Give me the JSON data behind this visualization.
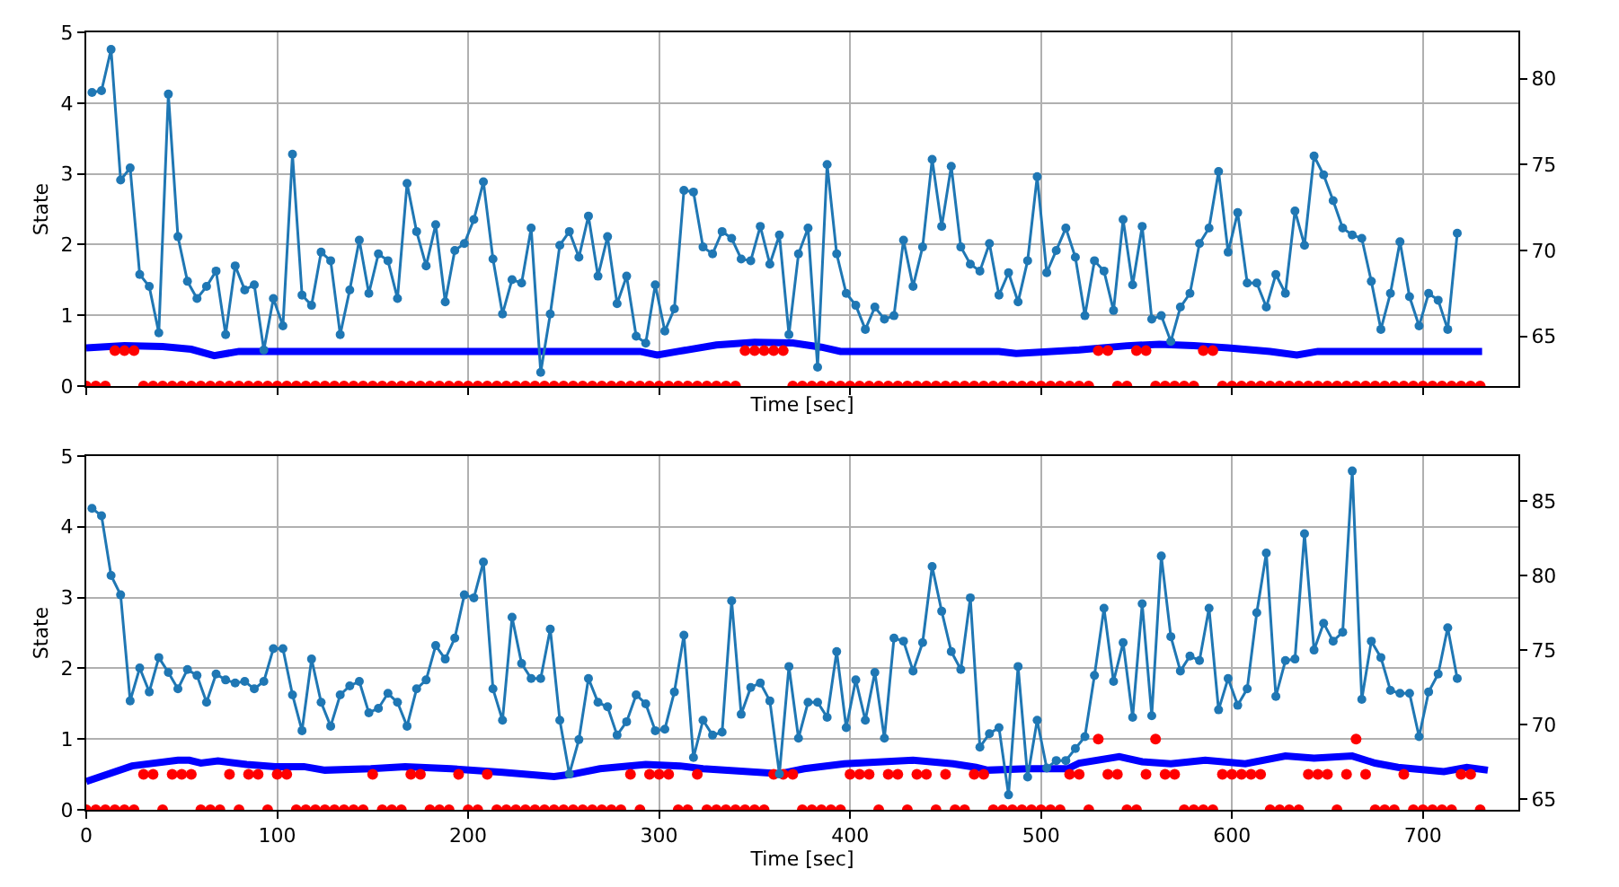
{
  "chart_data": [
    {
      "type": "line",
      "xlabel": "Time [sec]",
      "ylabel": "State",
      "xlim": [
        0,
        750
      ],
      "xticks": [
        0,
        100,
        200,
        300,
        400,
        500,
        600,
        700
      ],
      "ylim": [
        0,
        5
      ],
      "yticks": [
        0,
        1,
        2,
        3,
        4,
        5
      ],
      "y2lim": [
        62.1,
        82.7
      ],
      "y2ticks": [
        65,
        70,
        75,
        80
      ],
      "grid": true,
      "tick_labels": "y",
      "x": [
        3,
        8,
        13,
        18,
        23,
        28,
        33,
        38,
        43,
        48,
        53,
        58,
        63,
        68,
        73,
        78,
        83,
        88,
        93,
        98,
        103,
        108,
        113,
        118,
        123,
        128,
        133,
        138,
        143,
        148,
        153,
        158,
        163,
        168,
        173,
        178,
        183,
        188,
        193,
        198,
        203,
        208,
        213,
        218,
        223,
        228,
        233,
        238,
        243,
        248,
        253,
        258,
        263,
        268,
        273,
        278,
        283,
        288,
        293,
        298,
        303,
        308,
        313,
        318,
        323,
        328,
        333,
        338,
        343,
        348,
        353,
        358,
        363,
        368,
        373,
        378,
        383,
        388,
        393,
        398,
        403,
        408,
        413,
        418,
        423,
        428,
        433,
        438,
        443,
        448,
        453,
        458,
        463,
        468,
        473,
        478,
        483,
        488,
        493,
        498,
        503,
        508,
        513,
        518,
        523,
        528,
        533,
        538,
        543,
        548,
        553,
        558,
        563,
        568,
        573,
        578,
        583,
        588,
        593,
        598,
        603,
        608,
        613,
        618,
        623,
        628,
        633,
        638,
        643,
        648,
        653,
        658,
        663,
        668,
        673,
        678,
        683,
        688,
        693,
        698,
        703,
        708,
        713,
        718
      ],
      "series": [
        {
          "axis": "y2",
          "color": "#1f77b4",
          "marker": "circle",
          "values": [
            79.2,
            79.3,
            81.7,
            74.1,
            74.8,
            68.6,
            67.9,
            65.2,
            79.1,
            70.8,
            68.2,
            67.2,
            67.9,
            68.8,
            65.1,
            69.1,
            67.7,
            68.0,
            64.2,
            67.2,
            65.6,
            75.6,
            67.4,
            66.8,
            69.9,
            69.4,
            65.1,
            67.7,
            70.6,
            67.5,
            69.8,
            69.4,
            67.2,
            73.9,
            71.1,
            69.1,
            71.5,
            67.0,
            70.0,
            70.4,
            71.8,
            74.0,
            69.5,
            66.3,
            68.3,
            68.1,
            71.3,
            62.9,
            66.3,
            70.3,
            71.1,
            69.6,
            72.0,
            68.5,
            70.8,
            66.9,
            68.5,
            65.0,
            64.6,
            68.0,
            65.3,
            66.6,
            73.5,
            73.4,
            70.2,
            69.8,
            71.1,
            70.7,
            69.5,
            69.4,
            71.4,
            69.2,
            70.9,
            65.1,
            69.8,
            71.3,
            63.2,
            75.0,
            69.8,
            67.5,
            66.8,
            65.4,
            66.7,
            66.0,
            66.2,
            70.6,
            67.9,
            70.2,
            75.3,
            71.4,
            74.9,
            70.2,
            69.2,
            68.8,
            70.4,
            67.4,
            68.7,
            67.0,
            69.4,
            74.3,
            68.7,
            70.0,
            71.3,
            69.6,
            66.2,
            69.4,
            68.8,
            66.5,
            71.8,
            68.0,
            71.4,
            66.0,
            66.2,
            64.7,
            66.7,
            67.5,
            70.4,
            71.3,
            74.6,
            69.9,
            72.2,
            68.1,
            68.1,
            66.7,
            68.6,
            67.5,
            72.3,
            70.3,
            75.5,
            74.4,
            72.9,
            71.3,
            70.9,
            70.7,
            68.2,
            65.4,
            67.5,
            70.5,
            67.3,
            65.6,
            67.5,
            67.1,
            65.4,
            71.0
          ]
        },
        {
          "color": "#0000ff",
          "marker": "none",
          "x": [
            0,
            20,
            40,
            55,
            67,
            80,
            290,
            299,
            310,
            330,
            350,
            370,
            385,
            395,
            478,
            487,
            520,
            545,
            562,
            580,
            598,
            620,
            634,
            645,
            731
          ],
          "values": [
            0.54,
            0.57,
            0.56,
            0.52,
            0.43,
            0.49,
            0.49,
            0.44,
            0.49,
            0.58,
            0.62,
            0.61,
            0.55,
            0.49,
            0.49,
            0.46,
            0.51,
            0.57,
            0.59,
            0.57,
            0.54,
            0.49,
            0.44,
            0.49,
            0.49
          ]
        },
        {
          "type": "scatter",
          "color": "#ff0000",
          "marker": "circle",
          "x": [
            0,
            5,
            10,
            15,
            20,
            25,
            30,
            35,
            40,
            45,
            50,
            55,
            60,
            65,
            70,
            75,
            80,
            85,
            90,
            95,
            100,
            105,
            110,
            115,
            120,
            125,
            130,
            135,
            140,
            145,
            150,
            155,
            160,
            165,
            170,
            175,
            180,
            185,
            190,
            195,
            200,
            205,
            210,
            215,
            220,
            225,
            230,
            235,
            240,
            245,
            250,
            255,
            260,
            265,
            270,
            275,
            280,
            285,
            290,
            295,
            300,
            305,
            310,
            315,
            320,
            325,
            330,
            335,
            340,
            345,
            350,
            355,
            360,
            365,
            370,
            375,
            380,
            385,
            390,
            395,
            400,
            405,
            410,
            415,
            420,
            425,
            430,
            435,
            440,
            445,
            450,
            455,
            460,
            465,
            470,
            475,
            480,
            485,
            490,
            495,
            500,
            505,
            510,
            515,
            520,
            525,
            530,
            535,
            540,
            545,
            550,
            555,
            560,
            565,
            570,
            575,
            580,
            585,
            590,
            595,
            600,
            605,
            610,
            615,
            620,
            625,
            630,
            635,
            640,
            645,
            650,
            655,
            660,
            665,
            670,
            675,
            680,
            685,
            690,
            695,
            700,
            705,
            710,
            715,
            720,
            725,
            730
          ],
          "values": [
            0,
            0,
            0,
            0.5,
            0.5,
            0.5,
            0,
            0,
            0,
            0,
            0,
            0,
            0,
            0,
            0,
            0,
            0,
            0,
            0,
            0,
            0,
            0,
            0,
            0,
            0,
            0,
            0,
            0,
            0,
            0,
            0,
            0,
            0,
            0,
            0,
            0,
            0,
            0,
            0,
            0,
            0,
            0,
            0,
            0,
            0,
            0,
            0,
            0,
            0,
            0,
            0,
            0,
            0,
            0,
            0,
            0,
            0,
            0,
            0,
            0,
            0,
            0,
            0,
            0,
            0,
            0,
            0,
            0,
            0,
            0.5,
            0.5,
            0.5,
            0.5,
            0.5,
            0,
            0,
            0,
            0,
            0,
            0,
            0,
            0,
            0,
            0,
            0,
            0,
            0,
            0,
            0,
            0,
            0,
            0,
            0,
            0,
            0,
            0,
            0,
            0,
            0,
            0,
            0,
            0,
            0,
            0,
            0,
            0,
            0.5,
            0.5,
            0,
            0,
            0.5,
            0.5,
            0,
            0,
            0,
            0,
            0,
            0.5,
            0.5,
            0,
            0,
            0,
            0,
            0,
            0,
            0,
            0,
            0,
            0,
            0,
            0,
            0,
            0,
            0,
            0,
            0,
            0,
            0,
            0,
            0,
            0,
            0,
            0,
            0,
            0,
            0,
            0
          ]
        }
      ]
    },
    {
      "type": "line",
      "xlabel": "Time [sec]",
      "ylabel": "State",
      "xlim": [
        0,
        750
      ],
      "xticks": [
        0,
        100,
        200,
        300,
        400,
        500,
        600,
        700
      ],
      "ylim": [
        0,
        5
      ],
      "yticks": [
        0,
        1,
        2,
        3,
        4,
        5
      ],
      "y2lim": [
        64.3,
        88.0
      ],
      "y2ticks": [
        65,
        70,
        75,
        80,
        85
      ],
      "grid": true,
      "x": [
        3,
        8,
        13,
        18,
        23,
        28,
        33,
        38,
        43,
        48,
        53,
        58,
        63,
        68,
        73,
        78,
        83,
        88,
        93,
        98,
        103,
        108,
        113,
        118,
        123,
        128,
        133,
        138,
        143,
        148,
        153,
        158,
        163,
        168,
        173,
        178,
        183,
        188,
        193,
        198,
        203,
        208,
        213,
        218,
        223,
        228,
        233,
        238,
        243,
        248,
        253,
        258,
        263,
        268,
        273,
        278,
        283,
        288,
        293,
        298,
        303,
        308,
        313,
        318,
        323,
        328,
        333,
        338,
        343,
        348,
        353,
        358,
        363,
        368,
        373,
        378,
        383,
        388,
        393,
        398,
        403,
        408,
        413,
        418,
        423,
        428,
        433,
        438,
        443,
        448,
        453,
        458,
        463,
        468,
        473,
        478,
        483,
        488,
        493,
        498,
        503,
        508,
        513,
        518,
        523,
        528,
        533,
        538,
        543,
        548,
        553,
        558,
        563,
        568,
        573,
        578,
        583,
        588,
        593,
        598,
        603,
        608,
        613,
        618,
        623,
        628,
        633,
        638,
        643,
        648,
        653,
        658,
        663,
        668,
        673,
        678,
        683,
        688,
        693,
        698,
        703,
        708,
        713,
        718
      ],
      "series": [
        {
          "axis": "y2",
          "color": "#1f77b4",
          "marker": "circle",
          "values": [
            84.5,
            84.0,
            80.0,
            78.7,
            71.6,
            73.8,
            72.2,
            74.5,
            73.5,
            72.4,
            73.7,
            73.3,
            71.5,
            73.4,
            73.0,
            72.8,
            72.9,
            72.4,
            72.9,
            75.1,
            75.1,
            72.0,
            69.6,
            74.4,
            71.5,
            69.9,
            72.0,
            72.6,
            72.9,
            70.8,
            71.1,
            72.1,
            71.5,
            69.9,
            72.4,
            73.0,
            75.3,
            74.4,
            75.8,
            78.7,
            78.5,
            80.9,
            72.4,
            70.3,
            77.2,
            74.1,
            73.1,
            73.1,
            76.4,
            70.3,
            66.7,
            69.0,
            73.1,
            71.5,
            71.2,
            69.3,
            70.2,
            72.0,
            71.4,
            69.6,
            69.7,
            72.2,
            76.0,
            67.8,
            70.3,
            69.3,
            69.5,
            78.3,
            70.7,
            72.5,
            72.8,
            71.6,
            66.7,
            73.9,
            69.1,
            71.5,
            71.5,
            70.5,
            74.9,
            69.8,
            73.0,
            70.3,
            73.5,
            69.1,
            75.8,
            75.6,
            73.6,
            75.5,
            80.6,
            77.6,
            74.9,
            73.7,
            78.5,
            68.5,
            69.4,
            69.8,
            65.3,
            73.9,
            66.5,
            70.3,
            67.1,
            67.6,
            67.6,
            68.4,
            69.2,
            73.3,
            77.8,
            72.9,
            75.5,
            70.5,
            78.1,
            70.6,
            81.3,
            75.9,
            73.6,
            74.6,
            74.3,
            77.8,
            71.0,
            73.1,
            71.3,
            72.4,
            77.5,
            81.5,
            71.9,
            74.3,
            74.4,
            82.8,
            75.0,
            76.8,
            75.6,
            76.2,
            87.0,
            71.7,
            75.6,
            74.5,
            72.3,
            72.1,
            72.1,
            69.2,
            72.2,
            73.4,
            76.5,
            73.1
          ]
        },
        {
          "color": "#0000ff",
          "marker": "none",
          "x": [
            0,
            24,
            48,
            54,
            60,
            69,
            84,
            99,
            114,
            125,
            149,
            167,
            191,
            218,
            245,
            254,
            269,
            293,
            311,
            323,
            363,
            376,
            397,
            433,
            454,
            466,
            472,
            493,
            514,
            520,
            541,
            553,
            568,
            586,
            607,
            628,
            643,
            663,
            675,
            687,
            711,
            723,
            734
          ],
          "values": [
            0.4,
            0.62,
            0.7,
            0.7,
            0.66,
            0.69,
            0.64,
            0.61,
            0.61,
            0.56,
            0.58,
            0.61,
            0.58,
            0.53,
            0.47,
            0.5,
            0.58,
            0.64,
            0.62,
            0.58,
            0.51,
            0.58,
            0.65,
            0.7,
            0.65,
            0.6,
            0.56,
            0.58,
            0.58,
            0.66,
            0.75,
            0.68,
            0.65,
            0.7,
            0.65,
            0.76,
            0.73,
            0.76,
            0.66,
            0.6,
            0.54,
            0.6,
            0.56
          ]
        },
        {
          "type": "scatter",
          "color": "#ff0000",
          "marker": "circle",
          "x": [
            0,
            5,
            10,
            15,
            20,
            25,
            30,
            35,
            40,
            45,
            50,
            55,
            60,
            65,
            70,
            75,
            80,
            85,
            90,
            95,
            100,
            105,
            110,
            115,
            120,
            125,
            130,
            135,
            140,
            145,
            150,
            155,
            160,
            165,
            170,
            175,
            180,
            185,
            190,
            195,
            200,
            205,
            210,
            215,
            220,
            225,
            230,
            235,
            240,
            245,
            250,
            255,
            260,
            265,
            270,
            275,
            280,
            285,
            290,
            295,
            300,
            305,
            310,
            315,
            320,
            325,
            330,
            335,
            340,
            345,
            350,
            355,
            360,
            365,
            370,
            375,
            380,
            385,
            390,
            395,
            400,
            405,
            410,
            415,
            420,
            425,
            430,
            435,
            440,
            445,
            450,
            455,
            460,
            465,
            470,
            475,
            480,
            485,
            490,
            495,
            500,
            505,
            510,
            515,
            520,
            525,
            530,
            535,
            540,
            545,
            550,
            555,
            560,
            565,
            570,
            575,
            580,
            585,
            590,
            595,
            600,
            605,
            610,
            615,
            620,
            625,
            630,
            635,
            640,
            645,
            650,
            655,
            660,
            665,
            670,
            675,
            680,
            685,
            690,
            695,
            700,
            705,
            710,
            715,
            720,
            725,
            730
          ],
          "values": [
            0,
            0,
            0,
            0,
            0,
            0,
            0.5,
            0.5,
            0,
            0.5,
            0.5,
            0.5,
            0,
            0,
            0,
            0.5,
            0,
            0.5,
            0.5,
            0,
            0.5,
            0.5,
            0,
            0,
            0,
            0,
            0,
            0,
            0,
            0,
            0.5,
            0,
            0,
            0,
            0.5,
            0.5,
            0,
            0,
            0,
            0.5,
            0,
            0,
            0.5,
            0,
            0,
            0,
            0,
            0,
            0,
            0,
            0,
            0,
            0,
            0,
            0,
            0,
            0,
            0.5,
            0,
            0.5,
            0.5,
            0.5,
            0,
            0,
            0.5,
            0,
            0,
            0,
            0,
            0,
            0,
            0,
            0.5,
            0.5,
            0.5,
            0,
            0,
            0,
            0,
            0,
            0.5,
            0.5,
            0.5,
            0,
            0.5,
            0.5,
            0,
            0.5,
            0.5,
            0,
            0.5,
            0,
            0,
            0.5,
            0.5,
            0,
            0,
            0,
            0,
            0,
            0,
            0,
            0,
            0.5,
            0.5,
            0,
            1,
            0.5,
            0.5,
            0,
            0,
            0.5,
            1,
            0.5,
            0.5,
            0,
            0,
            0,
            0,
            0.5,
            0.5,
            0.5,
            0.5,
            0.5,
            0,
            0,
            0,
            0,
            0.5,
            0.5,
            0.5,
            0,
            0.5,
            1,
            0.5,
            0,
            0,
            0,
            0.5,
            0,
            0,
            0,
            0,
            0,
            0.5,
            0.5,
            0
          ]
        }
      ]
    }
  ]
}
